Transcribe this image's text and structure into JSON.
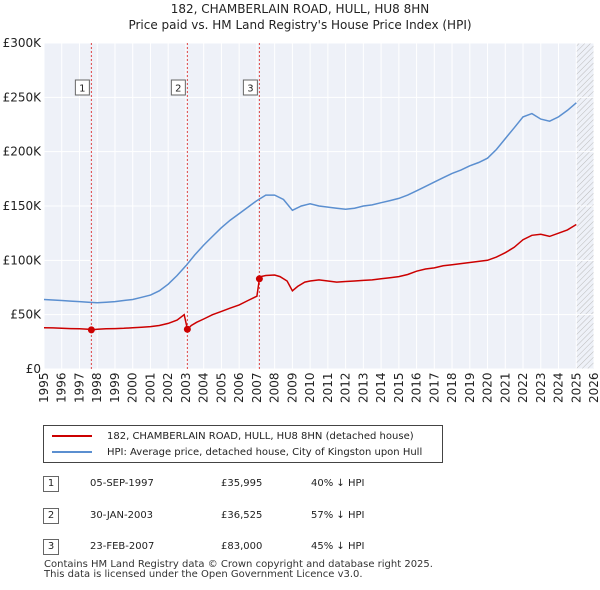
{
  "header": {
    "title_line1": "182, CHAMBERLAIN ROAD, HULL, HU8 8HN",
    "title_line2": "Price paid vs. HM Land Registry's House Price Index (HPI)"
  },
  "chart_data": {
    "type": "line",
    "title": "182, CHAMBERLAIN ROAD, HULL, HU8 8HN",
    "subtitle": "Price paid vs. HM Land Registry's House Price Index (HPI)",
    "ylim": [
      0,
      300000
    ],
    "xlim": [
      1995,
      2026
    ],
    "y_ticks": [
      0,
      50000,
      100000,
      150000,
      200000,
      250000,
      300000
    ],
    "y_tick_labels": [
      "£0",
      "£50K",
      "£100K",
      "£150K",
      "£200K",
      "£250K",
      "£300K"
    ],
    "x_ticks": [
      1995,
      1996,
      1997,
      1998,
      1999,
      2000,
      2001,
      2002,
      2003,
      2004,
      2005,
      2006,
      2007,
      2008,
      2009,
      2010,
      2011,
      2012,
      2013,
      2014,
      2015,
      2016,
      2017,
      2018,
      2019,
      2020,
      2021,
      2022,
      2023,
      2024,
      2025,
      2026
    ],
    "grid": true,
    "hatched_after": 2025.0,
    "series": [
      {
        "name": "182, CHAMBERLAIN ROAD, HULL, HU8 8HN (detached house)",
        "color": "#cc0000",
        "x": [
          1995.0,
          1995.5,
          1996.0,
          1996.5,
          1997.0,
          1997.5,
          1997.67,
          1998.0,
          1998.5,
          1999.0,
          1999.5,
          2000.0,
          2000.5,
          2001.0,
          2001.5,
          2002.0,
          2002.5,
          2002.9,
          2003.08,
          2003.3,
          2003.6,
          2004.0,
          2004.5,
          2005.0,
          2005.5,
          2006.0,
          2006.5,
          2007.0,
          2007.14,
          2007.2,
          2007.5,
          2008.0,
          2008.3,
          2008.7,
          2009.0,
          2009.3,
          2009.7,
          2010.0,
          2010.5,
          2011.0,
          2011.5,
          2012.0,
          2012.5,
          2013.0,
          2013.5,
          2014.0,
          2014.5,
          2015.0,
          2015.5,
          2016.0,
          2016.5,
          2017.0,
          2017.5,
          2018.0,
          2018.5,
          2019.0,
          2019.5,
          2020.0,
          2020.5,
          2021.0,
          2021.5,
          2022.0,
          2022.5,
          2023.0,
          2023.5,
          2024.0,
          2024.5,
          2025.0
        ],
        "y": [
          38000,
          37800,
          37500,
          37200,
          37000,
          36500,
          35995,
          36500,
          37000,
          37200,
          37500,
          38000,
          38500,
          39000,
          40000,
          42000,
          45000,
          50000,
          36525,
          40000,
          43000,
          46000,
          50000,
          53000,
          56000,
          59000,
          63000,
          67000,
          83000,
          85000,
          86000,
          86500,
          85000,
          81000,
          72000,
          76000,
          80000,
          81000,
          82000,
          81000,
          80000,
          80500,
          81000,
          81500,
          82000,
          83000,
          84000,
          85000,
          87000,
          90000,
          92000,
          93000,
          95000,
          96000,
          97000,
          98000,
          99000,
          100000,
          103000,
          107000,
          112000,
          119000,
          123000,
          124000,
          122000,
          125000,
          128000,
          133000
        ]
      },
      {
        "name": "HPI: Average price, detached house, City of Kingston upon Hull",
        "color": "#5b8fd0",
        "x": [
          1995.0,
          1995.5,
          1996.0,
          1996.5,
          1997.0,
          1997.5,
          1998.0,
          1998.5,
          1999.0,
          1999.5,
          2000.0,
          2000.5,
          2001.0,
          2001.5,
          2002.0,
          2002.5,
          2003.0,
          2003.5,
          2004.0,
          2004.5,
          2005.0,
          2005.5,
          2006.0,
          2006.5,
          2007.0,
          2007.5,
          2008.0,
          2008.5,
          2009.0,
          2009.5,
          2010.0,
          2010.5,
          2011.0,
          2011.5,
          2012.0,
          2012.5,
          2013.0,
          2013.5,
          2014.0,
          2014.5,
          2015.0,
          2015.5,
          2016.0,
          2016.5,
          2017.0,
          2017.5,
          2018.0,
          2018.5,
          2019.0,
          2019.5,
          2020.0,
          2020.5,
          2021.0,
          2021.5,
          2022.0,
          2022.5,
          2023.0,
          2023.5,
          2024.0,
          2024.5,
          2025.0
        ],
        "y": [
          64000,
          63500,
          63000,
          62500,
          62000,
          61500,
          61000,
          61500,
          62000,
          63000,
          64000,
          66000,
          68000,
          72000,
          78000,
          86000,
          95000,
          105000,
          114000,
          122000,
          130000,
          137000,
          143000,
          149000,
          155000,
          160000,
          160000,
          156000,
          146000,
          150000,
          152000,
          150000,
          149000,
          148000,
          147000,
          148000,
          150000,
          151000,
          153000,
          155000,
          157000,
          160000,
          164000,
          168000,
          172000,
          176000,
          180000,
          183000,
          187000,
          190000,
          194000,
          202000,
          212000,
          222000,
          232000,
          235000,
          230000,
          228000,
          232000,
          238000,
          245000
        ]
      }
    ],
    "sales": [
      {
        "label": "1",
        "x": 1997.67,
        "y": 35995
      },
      {
        "label": "2",
        "x": 2003.08,
        "y": 36525
      },
      {
        "label": "3",
        "x": 2007.14,
        "y": 83000
      }
    ]
  },
  "legend": {
    "items": [
      {
        "label": "182, CHAMBERLAIN ROAD, HULL, HU8 8HN (detached house)",
        "color": "#cc0000"
      },
      {
        "label": "HPI: Average price, detached house, City of Kingston upon Hull",
        "color": "#5b8fd0"
      }
    ]
  },
  "transactions": [
    {
      "num": "1",
      "date": "05-SEP-1997",
      "price": "£35,995",
      "pct": "40% ↓ HPI"
    },
    {
      "num": "2",
      "date": "30-JAN-2003",
      "price": "£36,525",
      "pct": "57% ↓ HPI"
    },
    {
      "num": "3",
      "date": "23-FEB-2007",
      "price": "£83,000",
      "pct": "45% ↓ HPI"
    }
  ],
  "footer": {
    "line1": "Contains HM Land Registry data © Crown copyright and database right 2025.",
    "line2": "This data is licensed under the Open Government Licence v3.0."
  }
}
